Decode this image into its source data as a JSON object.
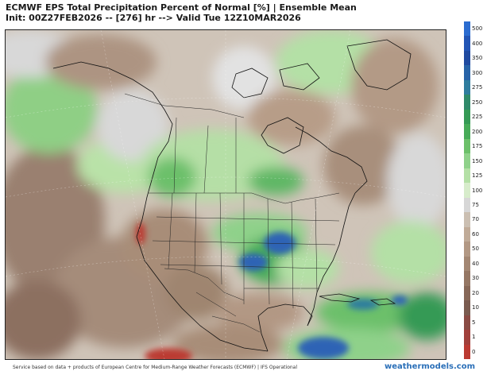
{
  "header": {
    "title_line1": "ECMWF EPS Total Precipitation Percent of Normal [%] | Ensemble Mean",
    "title_line2": "Init: 00Z27FEB2026 -- [276] hr --> Valid Tue 12Z10MAR2026"
  },
  "legend": {
    "items": [
      {
        "label": "500",
        "color": "#2b6cd0"
      },
      {
        "label": "400",
        "color": "#2255b5"
      },
      {
        "label": "350",
        "color": "#1f4aa0"
      },
      {
        "label": "300",
        "color": "#2763a8"
      },
      {
        "label": "275",
        "color": "#2f7d9e"
      },
      {
        "label": "250",
        "color": "#2f8a6a"
      },
      {
        "label": "225",
        "color": "#359a55"
      },
      {
        "label": "200",
        "color": "#47ab58"
      },
      {
        "label": "175",
        "color": "#6cc06a"
      },
      {
        "label": "150",
        "color": "#8fd18a"
      },
      {
        "label": "125",
        "color": "#b4e0a6"
      },
      {
        "label": "100",
        "color": "#d7eccb"
      },
      {
        "label": "75",
        "color": "#d7d7d7"
      },
      {
        "label": "70",
        "color": "#cbbfb2"
      },
      {
        "label": "60",
        "color": "#c0ab98"
      },
      {
        "label": "50",
        "color": "#b29884"
      },
      {
        "label": "40",
        "color": "#a38773"
      },
      {
        "label": "30",
        "color": "#957764"
      },
      {
        "label": "20",
        "color": "#876858"
      },
      {
        "label": "10",
        "color": "#7a5b4f"
      },
      {
        "label": "5",
        "color": "#8a4b44"
      },
      {
        "label": "1",
        "color": "#a1403b"
      },
      {
        "label": "0",
        "color": "#bb3a32"
      }
    ]
  },
  "footer": {
    "credit": "Service based on data + products of European Centre for Medium-Range Weather Forecasts (ECMWF) | IFS Operational",
    "brand": "weathermodels.com"
  }
}
